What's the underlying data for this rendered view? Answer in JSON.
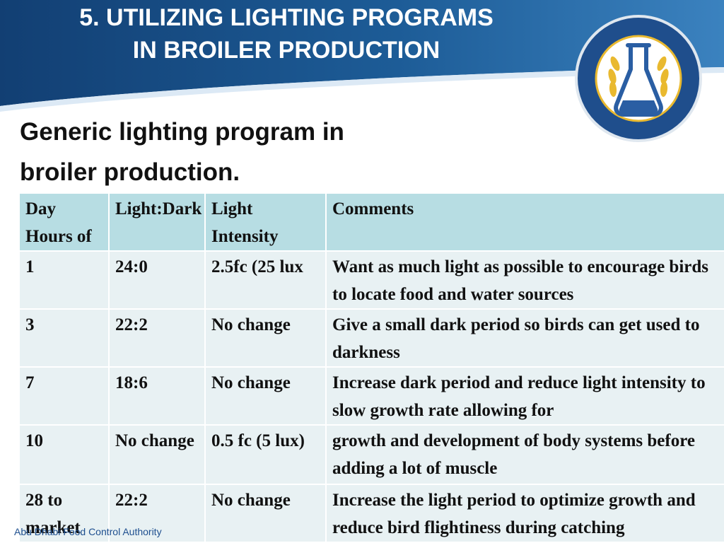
{
  "header": {
    "title_line1": "5. UTILIZING LIGHTING PROGRAMS",
    "title_line2": "IN BROILER PRODUCTION",
    "colors": {
      "banner_dark": "#123f73",
      "banner_mid": "#1d5c97",
      "banner_light": "#3b82bf",
      "swoosh": "#dce9f5"
    }
  },
  "logo": {
    "name": "Abu Dhabi Food Control Authority",
    "icon": "flask-wheat-emblem",
    "colors": {
      "ring": "#1f4e8c",
      "gold": "#e9b92f",
      "blue_flask": "#2a5ea3"
    }
  },
  "subtitle": {
    "line1": "Generic lighting program in",
    "line2": "broiler production."
  },
  "table": {
    "headers": {
      "day": "Day Hours of",
      "light_dark": "Light:Dark",
      "intensity": "Light Intensity",
      "comments": "Comments"
    },
    "rows": [
      {
        "day": "1",
        "light_dark": "24:0",
        "intensity": "2.5fc (25 lux",
        "comments": "Want as much light as possible to encourage birds to locate food and water sources"
      },
      {
        "day": "3",
        "light_dark": "22:2",
        "intensity": "No change",
        "comments": "Give a small dark period so birds can get used to darkness"
      },
      {
        "day": "7",
        "light_dark": "18:6",
        "intensity": "No change",
        "comments": "Increase dark period and reduce light intensity to slow growth rate allowing for"
      },
      {
        "day": "10",
        "light_dark": "No change",
        "intensity": "0.5 fc (5 lux)",
        "comments": "growth and development of body systems before adding a lot of muscle"
      },
      {
        "day": "28 to market",
        "light_dark": "22:2",
        "intensity": "No change",
        "comments": "Increase the light period to optimize growth and reduce bird flightiness during catching"
      }
    ],
    "colors": {
      "header_bg": "#b7dde3",
      "cell_bg": "#e8f1f3"
    }
  },
  "footer": {
    "text": "Abu Dhabi Food Control Authority"
  }
}
